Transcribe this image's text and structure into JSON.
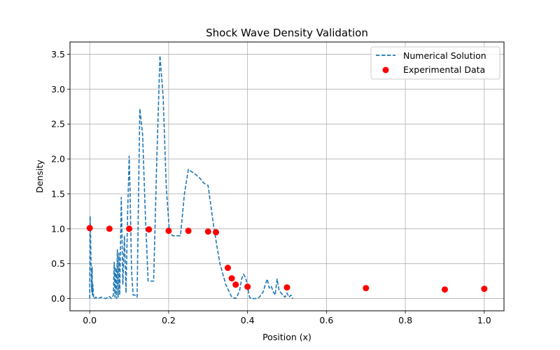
{
  "chart_data": {
    "type": "line+scatter",
    "title": "Shock Wave Density Validation",
    "xlabel": "Position (x)",
    "ylabel": "Density",
    "xlim": [
      -0.05,
      1.05
    ],
    "ylim": [
      -0.175,
      3.675
    ],
    "xticks": [
      0.0,
      0.2,
      0.4,
      0.6,
      0.8,
      1.0
    ],
    "xtick_labels": [
      "0.0",
      "0.2",
      "0.4",
      "0.6",
      "0.8",
      "1.0"
    ],
    "yticks": [
      0.0,
      0.5,
      1.0,
      1.5,
      2.0,
      2.5,
      3.0,
      3.5
    ],
    "ytick_labels": [
      "0.0",
      "0.5",
      "1.0",
      "1.5",
      "2.0",
      "2.5",
      "3.0",
      "3.5"
    ],
    "grid": true,
    "legend_position": "top-right",
    "series": [
      {
        "name": "Numerical Solution",
        "kind": "line",
        "style": "dashed",
        "color": "#1f77b4",
        "x": [
          0.0,
          0.001,
          0.002,
          0.003,
          0.004,
          0.005,
          0.006,
          0.007,
          0.008,
          0.01,
          0.012,
          0.015,
          0.02,
          0.03,
          0.04,
          0.05,
          0.055,
          0.06,
          0.062,
          0.064,
          0.066,
          0.068,
          0.07,
          0.072,
          0.074,
          0.076,
          0.08,
          0.084,
          0.088,
          0.092,
          0.096,
          0.1,
          0.102,
          0.106,
          0.11,
          0.115,
          0.12,
          0.127,
          0.134,
          0.141,
          0.148,
          0.155,
          0.162,
          0.17,
          0.178,
          0.186,
          0.194,
          0.202,
          0.21,
          0.22,
          0.23,
          0.24,
          0.25,
          0.268,
          0.28,
          0.29,
          0.3,
          0.315,
          0.33,
          0.345,
          0.36,
          0.37,
          0.375,
          0.38,
          0.385,
          0.39,
          0.395,
          0.4,
          0.405,
          0.41,
          0.42,
          0.43,
          0.44,
          0.445,
          0.45,
          0.455,
          0.46,
          0.465,
          0.47,
          0.475,
          0.48,
          0.485,
          0.49,
          0.495,
          0.5,
          0.505,
          0.51,
          0.515
        ],
        "y": [
          0.0,
          1.18,
          0.95,
          0.6,
          0.3,
          0.1,
          0.45,
          0.05,
          0.2,
          0.0,
          0.0,
          0.02,
          0.0,
          0.02,
          0.0,
          0.03,
          0.0,
          0.05,
          0.52,
          0.02,
          0.45,
          0.0,
          0.7,
          0.02,
          0.65,
          0.05,
          1.45,
          0.2,
          0.9,
          0.08,
          1.2,
          2.04,
          1.6,
          0.4,
          0.05,
          0.05,
          0.02,
          2.72,
          2.35,
          1.2,
          0.25,
          0.25,
          0.25,
          2.0,
          3.48,
          2.9,
          1.6,
          0.95,
          0.9,
          0.9,
          0.9,
          1.5,
          1.85,
          1.78,
          1.72,
          1.65,
          1.62,
          1.0,
          0.5,
          0.2,
          0.02,
          0.0,
          0.05,
          0.12,
          0.28,
          0.35,
          0.3,
          0.18,
          0.02,
          0.0,
          0.0,
          0.02,
          0.1,
          0.2,
          0.28,
          0.15,
          0.18,
          0.1,
          0.05,
          0.28,
          0.12,
          0.08,
          0.05,
          0.02,
          0.08,
          0.02,
          0.05,
          0.0
        ]
      },
      {
        "name": "Experimental Data",
        "kind": "scatter",
        "color": "#ff0000",
        "x": [
          0.0,
          0.05,
          0.1,
          0.15,
          0.2,
          0.25,
          0.3,
          0.32,
          0.35,
          0.36,
          0.37,
          0.4,
          0.5,
          0.7,
          0.9,
          1.0
        ],
        "y": [
          1.01,
          1.0,
          1.0,
          0.99,
          0.97,
          0.97,
          0.96,
          0.95,
          0.44,
          0.29,
          0.2,
          0.17,
          0.16,
          0.15,
          0.13,
          0.14
        ]
      }
    ]
  }
}
